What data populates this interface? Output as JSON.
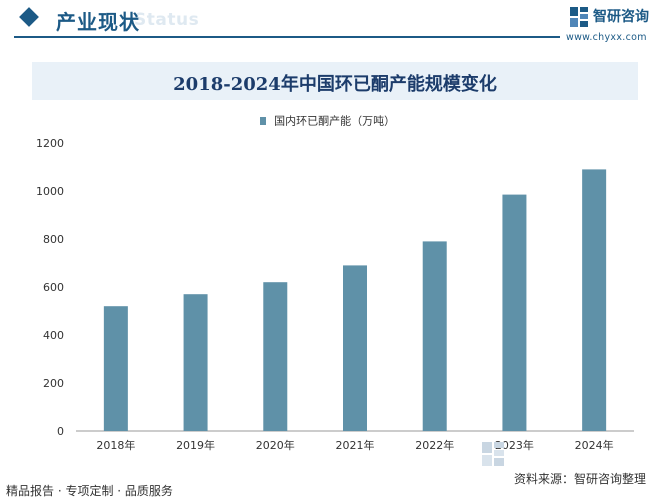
{
  "header": {
    "title": "产业现状",
    "bg_word": "Status",
    "logo_name": "智研咨询",
    "logo_url": "www.chyxx.com",
    "accent_color": "#1c5a86"
  },
  "chart_data": {
    "type": "bar",
    "title": "2018-2024年中国环已酮产能规模变化",
    "categories": [
      "2018年",
      "2019年",
      "2020年",
      "2021年",
      "2022年",
      "2023年",
      "2024年"
    ],
    "series": [
      {
        "name": "国内环已酮产能（万吨）",
        "values": [
          520,
          570,
          620,
          690,
          790,
          985,
          1090
        ],
        "color": "#5f91a8"
      }
    ],
    "xlabel": "",
    "ylabel": "",
    "ylim": [
      0,
      1200
    ],
    "yticks": [
      0,
      200,
      400,
      600,
      800,
      1000,
      1200
    ],
    "grid": false,
    "legend": "top-center"
  },
  "footer": {
    "left_text": "精品报告 · 专项定制 · 品质服务",
    "source_text": "资料来源：智研咨询整理"
  }
}
